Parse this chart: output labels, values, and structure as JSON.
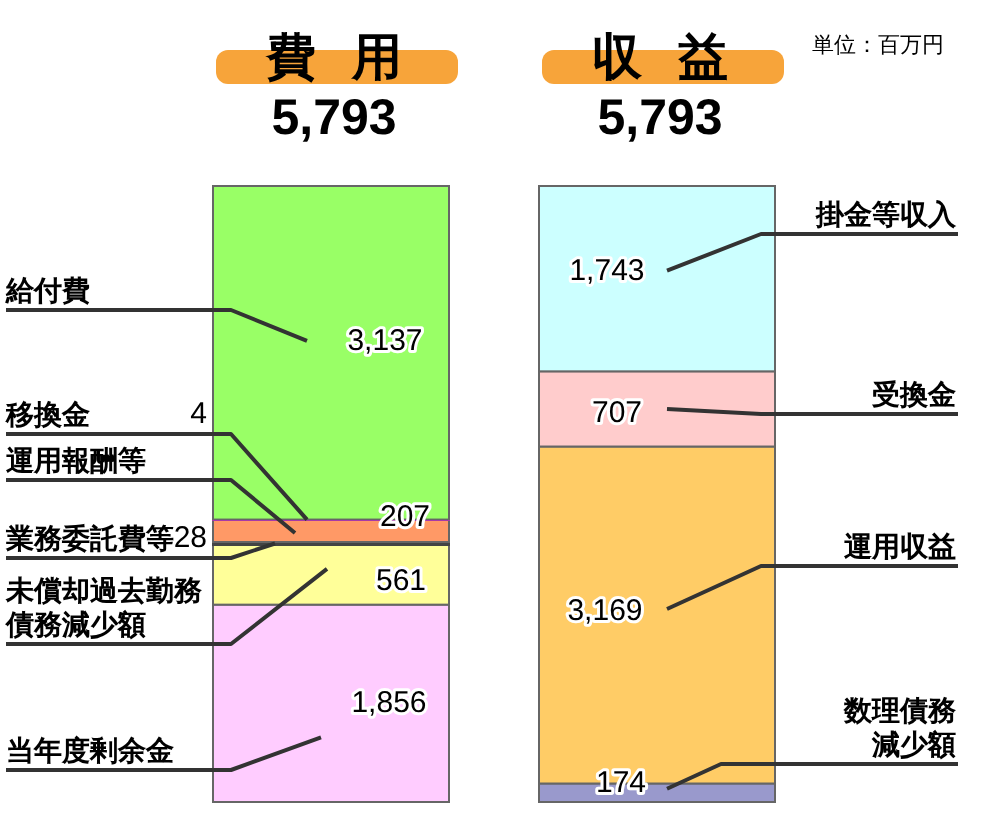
{
  "chart_data": {
    "type": "bar",
    "stacked": true,
    "tick_labels": "x",
    "categories": [
      "費用",
      "収益"
    ],
    "totals": [
      "5,793",
      "5,793"
    ],
    "annotations": [
      "単位：百万円"
    ],
    "series": [
      {
        "name": "当年度剰余金",
        "color": "#ffccff",
        "values": [
          1856,
          null
        ],
        "value_labels": [
          "1,856",
          null
        ]
      },
      {
        "name": "未償却過去勤務債務減少額",
        "color": "#ffff99",
        "values": [
          561,
          null
        ],
        "value_labels": [
          "561",
          null
        ]
      },
      {
        "name": "業務委託費等",
        "color": "#444444",
        "values": [
          28,
          null
        ],
        "value_labels": [
          "28",
          null
        ]
      },
      {
        "name": "運用報酬等",
        "color": "#ff9966",
        "values": [
          207,
          null
        ],
        "value_labels": [
          "207",
          null
        ]
      },
      {
        "name": "移換金",
        "color": "#ff00ff",
        "values": [
          4,
          null
        ],
        "value_labels": [
          "4",
          null
        ]
      },
      {
        "name": "給付費",
        "color": "#99ff66",
        "values": [
          3137,
          null
        ],
        "value_labels": [
          "3,137",
          null
        ]
      },
      {
        "name": "数理債務減少額",
        "color": "#9999cc",
        "values": [
          null,
          174
        ],
        "value_labels": [
          null,
          "174"
        ]
      },
      {
        "name": "運用収益",
        "color": "#ffcc66",
        "values": [
          null,
          3169
        ],
        "value_labels": [
          null,
          "3,169"
        ]
      },
      {
        "name": "受換金",
        "color": "#ffcccc",
        "values": [
          null,
          707
        ],
        "value_labels": [
          null,
          "707"
        ]
      },
      {
        "name": "掛金等収入",
        "color": "#ccffff",
        "values": [
          null,
          1743
        ],
        "value_labels": [
          null,
          "1,743"
        ]
      }
    ]
  }
}
